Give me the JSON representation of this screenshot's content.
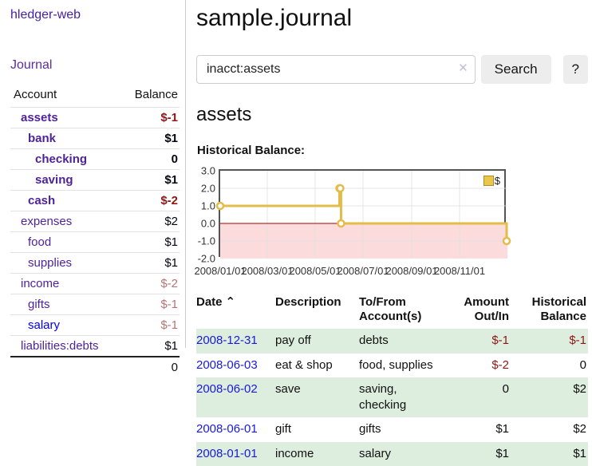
{
  "sidebar": {
    "app_title": "hledger-web",
    "journal_link": "Journal",
    "accounts_table": {
      "headers": {
        "account": "Account",
        "balance": "Balance"
      },
      "rows": [
        {
          "account": "assets",
          "depth": 1,
          "bold": true,
          "name_color": "purple",
          "balance": "$-1",
          "balance_style": "neg-strong"
        },
        {
          "account": "bank",
          "depth": 2,
          "bold": true,
          "name_color": "purple",
          "balance": "$1",
          "balance_style": "pos-strong"
        },
        {
          "account": "checking",
          "depth": 3,
          "bold": true,
          "name_color": "purple",
          "balance": "0",
          "balance_style": "pos-strong"
        },
        {
          "account": "saving",
          "depth": 3,
          "bold": true,
          "name_color": "purple",
          "balance": "$1",
          "balance_style": "pos-strong"
        },
        {
          "account": "cash",
          "depth": 2,
          "bold": true,
          "name_color": "purple",
          "balance": "$-2",
          "balance_style": "neg-strong"
        },
        {
          "account": "expenses",
          "depth": 1,
          "bold": false,
          "name_color": "purple",
          "balance": "$2",
          "balance_style": "plain"
        },
        {
          "account": "food",
          "depth": 2,
          "bold": false,
          "name_color": "purple",
          "balance": "$1",
          "balance_style": "plain"
        },
        {
          "account": "supplies",
          "depth": 2,
          "bold": false,
          "name_color": "purple",
          "balance": "$1",
          "balance_style": "plain"
        },
        {
          "account": "income",
          "depth": 1,
          "bold": false,
          "name_color": "purple",
          "balance": "$-2",
          "balance_style": "rose"
        },
        {
          "account": "gifts",
          "depth": 2,
          "bold": false,
          "name_color": "purple",
          "balance": "$-1",
          "balance_style": "rose"
        },
        {
          "account": "salary",
          "depth": 2,
          "bold": false,
          "name_color": "blue",
          "balance": "$-1",
          "balance_style": "rose"
        },
        {
          "account": "liabilities:debts",
          "depth": 1,
          "bold": false,
          "name_color": "purple",
          "balance": "$1",
          "balance_style": "plain"
        }
      ],
      "total": "0"
    }
  },
  "header": {
    "title": "sample.journal"
  },
  "search": {
    "value": "inacct:assets",
    "clear_icon": "✕",
    "search_label": "Search",
    "help_label": "?"
  },
  "account_page": {
    "heading": "assets",
    "chart_label": "Historical Balance:"
  },
  "chart_data": {
    "type": "line",
    "step": true,
    "title": "Historical Balance:",
    "series": [
      {
        "name": "$",
        "points": [
          {
            "date": "2008-01-01",
            "value": 1
          },
          {
            "date": "2008-06-01",
            "value": 2
          },
          {
            "date": "2008-06-02",
            "value": 2
          },
          {
            "date": "2008-06-03",
            "value": 0
          },
          {
            "date": "2008-12-31",
            "value": -1
          }
        ]
      }
    ],
    "xrange": [
      "2008-01-01",
      "2009-01-01"
    ],
    "ylim": [
      -2,
      3
    ],
    "yticks": [
      "3.0",
      "2.0",
      "1.0",
      "0.0",
      "-1.0",
      "-2.0"
    ],
    "xticks": [
      "2008/01/01",
      "2008/03/01",
      "2008/05/01",
      "2008/07/01",
      "2008/09/01",
      "2008/11/01"
    ],
    "grid": true,
    "legend_position": "top-right",
    "negative_region": true
  },
  "register_table": {
    "headers": {
      "date": "Date",
      "sort_icon": "⌃",
      "description": "Description",
      "tofrom": "To/From Account(s)",
      "amount": "Amount Out/In",
      "balance": "Historical Balance"
    },
    "rows": [
      {
        "date": "2008-12-31",
        "description": "pay off",
        "accounts": "debts",
        "amount": "$-1",
        "amount_negative": true,
        "balance": "$-1",
        "balance_negative": true,
        "striped": true
      },
      {
        "date": "2008-06-03",
        "description": "eat & shop",
        "accounts": "food, supplies",
        "amount": "$-2",
        "amount_negative": true,
        "balance": "0",
        "balance_negative": false,
        "striped": false
      },
      {
        "date": "2008-06-02",
        "description": "save",
        "accounts": "saving, checking",
        "amount": "0",
        "amount_negative": false,
        "balance": "$2",
        "balance_negative": false,
        "striped": true
      },
      {
        "date": "2008-06-01",
        "description": "gift",
        "accounts": "gifts",
        "amount": "$1",
        "amount_negative": false,
        "balance": "$2",
        "balance_negative": false,
        "striped": false
      },
      {
        "date": "2008-01-01",
        "description": "income",
        "accounts": "salary",
        "amount": "$1",
        "amount_negative": false,
        "balance": "$1",
        "balance_negative": false,
        "striped": true
      }
    ]
  },
  "colors": {
    "purple_link": "#4e2399",
    "blue_link": "#0000ee",
    "date_link": "#1a1ad6",
    "negative_red": "#8f1616",
    "rose": "#b87474",
    "row_green": "#deeede",
    "line_gold": "#e3bc4a",
    "legend_gold": "#e9c849",
    "negative_pink": "#fbdbdb",
    "zero_line_red": "#a40000",
    "grid_gray": "#e0e0e0",
    "chart_border": "#545454",
    "button_gray": "#ededed"
  }
}
